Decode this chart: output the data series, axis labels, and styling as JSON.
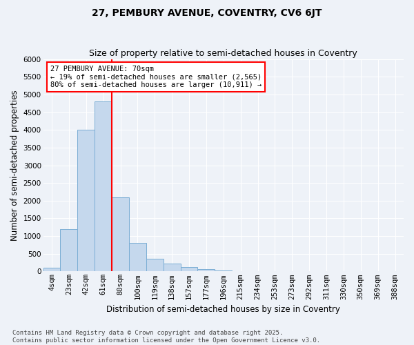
{
  "title_line1": "27, PEMBURY AVENUE, COVENTRY, CV6 6JT",
  "title_line2": "Size of property relative to semi-detached houses in Coventry",
  "xlabel": "Distribution of semi-detached houses by size in Coventry",
  "ylabel": "Number of semi-detached properties",
  "categories": [
    "4sqm",
    "23sqm",
    "42sqm",
    "61sqm",
    "80sqm",
    "100sqm",
    "119sqm",
    "138sqm",
    "157sqm",
    "177sqm",
    "196sqm",
    "215sqm",
    "234sqm",
    "253sqm",
    "273sqm",
    "292sqm",
    "311sqm",
    "330sqm",
    "350sqm",
    "369sqm",
    "388sqm"
  ],
  "values": [
    100,
    1200,
    4000,
    4800,
    2100,
    800,
    350,
    230,
    120,
    60,
    30,
    10,
    5,
    0,
    0,
    0,
    0,
    0,
    0,
    0,
    0
  ],
  "bar_color": "#c5d8ed",
  "bar_edge_color": "#7aadd4",
  "red_line_label": "27 PEMBURY AVENUE: 70sqm",
  "annotation_smaller": "← 19% of semi-detached houses are smaller (2,565)",
  "annotation_larger": "80% of semi-detached houses are larger (10,911) →",
  "ylim": [
    0,
    6000
  ],
  "yticks": [
    0,
    500,
    1000,
    1500,
    2000,
    2500,
    3000,
    3500,
    4000,
    4500,
    5000,
    5500,
    6000
  ],
  "footnote1": "Contains HM Land Registry data © Crown copyright and database right 2025.",
  "footnote2": "Contains public sector information licensed under the Open Government Licence v3.0.",
  "background_color": "#eef2f8",
  "plot_background": "#eef2f8",
  "grid_color": "#ffffff",
  "title_fontsize": 10,
  "subtitle_fontsize": 9,
  "axis_label_fontsize": 8.5,
  "tick_fontsize": 7.5,
  "footnote_fontsize": 6.5
}
